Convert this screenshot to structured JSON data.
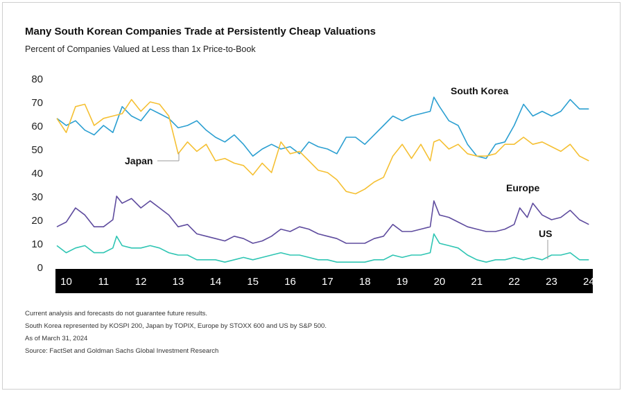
{
  "chart_data": {
    "type": "line",
    "title": "Many South Korean Companies Trade at Persistently Cheap Valuations",
    "subtitle": "Percent of Companies Valued at Less than 1x Price-to-Book",
    "xlabel": "",
    "ylabel": "",
    "ylim": [
      0,
      80
    ],
    "yticks": [
      0,
      10,
      20,
      30,
      40,
      50,
      60,
      70,
      80
    ],
    "xlim": [
      2010.0,
      2024.3
    ],
    "xtick_values": [
      2010.25,
      2011.25,
      2012.25,
      2013.25,
      2014.25,
      2015.25,
      2016.25,
      2017.25,
      2018.25,
      2019.25,
      2020.25,
      2021.25,
      2022.25,
      2023.25,
      2024.25
    ],
    "xtick_labels": [
      "10",
      "11",
      "12",
      "13",
      "14",
      "15",
      "16",
      "17",
      "18",
      "19",
      "20",
      "21",
      "22",
      "23",
      "24"
    ],
    "grid": false,
    "series": [
      {
        "name": "South Korea",
        "color": "#2b9fd1",
        "points": [
          [
            2010.0,
            63
          ],
          [
            2010.25,
            60
          ],
          [
            2010.5,
            62
          ],
          [
            2010.75,
            58
          ],
          [
            2011.0,
            56
          ],
          [
            2011.25,
            60
          ],
          [
            2011.5,
            57
          ],
          [
            2011.75,
            68
          ],
          [
            2012.0,
            64
          ],
          [
            2012.25,
            62
          ],
          [
            2012.5,
            67
          ],
          [
            2012.75,
            65
          ],
          [
            2013.0,
            63
          ],
          [
            2013.25,
            59
          ],
          [
            2013.5,
            60
          ],
          [
            2013.75,
            62
          ],
          [
            2014.0,
            58
          ],
          [
            2014.25,
            55
          ],
          [
            2014.5,
            53
          ],
          [
            2014.75,
            56
          ],
          [
            2015.0,
            52
          ],
          [
            2015.25,
            47
          ],
          [
            2015.5,
            50
          ],
          [
            2015.75,
            52
          ],
          [
            2016.0,
            50
          ],
          [
            2016.25,
            51
          ],
          [
            2016.5,
            48
          ],
          [
            2016.75,
            53
          ],
          [
            2017.0,
            51
          ],
          [
            2017.25,
            50
          ],
          [
            2017.5,
            48
          ],
          [
            2017.75,
            55
          ],
          [
            2018.0,
            55
          ],
          [
            2018.25,
            52
          ],
          [
            2018.5,
            56
          ],
          [
            2018.75,
            60
          ],
          [
            2019.0,
            64
          ],
          [
            2019.25,
            62
          ],
          [
            2019.5,
            64
          ],
          [
            2019.75,
            65
          ],
          [
            2020.0,
            66
          ],
          [
            2020.1,
            72
          ],
          [
            2020.25,
            68
          ],
          [
            2020.5,
            62
          ],
          [
            2020.75,
            60
          ],
          [
            2021.0,
            52
          ],
          [
            2021.25,
            47
          ],
          [
            2021.5,
            46
          ],
          [
            2021.75,
            52
          ],
          [
            2022.0,
            53
          ],
          [
            2022.25,
            60
          ],
          [
            2022.5,
            69
          ],
          [
            2022.75,
            64
          ],
          [
            2023.0,
            66
          ],
          [
            2023.25,
            64
          ],
          [
            2023.5,
            66
          ],
          [
            2023.75,
            71
          ],
          [
            2024.0,
            67
          ],
          [
            2024.25,
            67
          ]
        ]
      },
      {
        "name": "Japan",
        "color": "#f5c033",
        "points": [
          [
            2010.0,
            63
          ],
          [
            2010.25,
            57
          ],
          [
            2010.5,
            68
          ],
          [
            2010.75,
            69
          ],
          [
            2011.0,
            60
          ],
          [
            2011.25,
            63
          ],
          [
            2011.5,
            64
          ],
          [
            2011.75,
            65
          ],
          [
            2012.0,
            71
          ],
          [
            2012.25,
            66
          ],
          [
            2012.5,
            70
          ],
          [
            2012.75,
            69
          ],
          [
            2013.0,
            64
          ],
          [
            2013.25,
            48
          ],
          [
            2013.5,
            53
          ],
          [
            2013.75,
            49
          ],
          [
            2014.0,
            52
          ],
          [
            2014.25,
            45
          ],
          [
            2014.5,
            46
          ],
          [
            2014.75,
            44
          ],
          [
            2015.0,
            43
          ],
          [
            2015.25,
            39
          ],
          [
            2015.5,
            44
          ],
          [
            2015.75,
            40
          ],
          [
            2016.0,
            53
          ],
          [
            2016.25,
            48
          ],
          [
            2016.5,
            49
          ],
          [
            2016.75,
            45
          ],
          [
            2017.0,
            41
          ],
          [
            2017.25,
            40
          ],
          [
            2017.5,
            37
          ],
          [
            2017.75,
            32
          ],
          [
            2018.0,
            31
          ],
          [
            2018.25,
            33
          ],
          [
            2018.5,
            36
          ],
          [
            2018.75,
            38
          ],
          [
            2019.0,
            47
          ],
          [
            2019.25,
            52
          ],
          [
            2019.5,
            46
          ],
          [
            2019.75,
            52
          ],
          [
            2020.0,
            45
          ],
          [
            2020.1,
            53
          ],
          [
            2020.25,
            54
          ],
          [
            2020.5,
            50
          ],
          [
            2020.75,
            52
          ],
          [
            2021.0,
            48
          ],
          [
            2021.25,
            47
          ],
          [
            2021.5,
            47
          ],
          [
            2021.75,
            48
          ],
          [
            2022.0,
            52
          ],
          [
            2022.25,
            52
          ],
          [
            2022.5,
            55
          ],
          [
            2022.75,
            52
          ],
          [
            2023.0,
            53
          ],
          [
            2023.25,
            51
          ],
          [
            2023.5,
            49
          ],
          [
            2023.75,
            52
          ],
          [
            2024.0,
            47
          ],
          [
            2024.25,
            45
          ]
        ]
      },
      {
        "name": "Europe",
        "color": "#5e4b9e",
        "points": [
          [
            2010.0,
            17
          ],
          [
            2010.25,
            19
          ],
          [
            2010.5,
            25
          ],
          [
            2010.75,
            22
          ],
          [
            2011.0,
            17
          ],
          [
            2011.25,
            17
          ],
          [
            2011.5,
            20
          ],
          [
            2011.6,
            30
          ],
          [
            2011.75,
            27
          ],
          [
            2012.0,
            29
          ],
          [
            2012.25,
            25
          ],
          [
            2012.5,
            28
          ],
          [
            2012.75,
            25
          ],
          [
            2013.0,
            22
          ],
          [
            2013.25,
            17
          ],
          [
            2013.5,
            18
          ],
          [
            2013.75,
            14
          ],
          [
            2014.0,
            13
          ],
          [
            2014.25,
            12
          ],
          [
            2014.5,
            11
          ],
          [
            2014.75,
            13
          ],
          [
            2015.0,
            12
          ],
          [
            2015.25,
            10
          ],
          [
            2015.5,
            11
          ],
          [
            2015.75,
            13
          ],
          [
            2016.0,
            16
          ],
          [
            2016.25,
            15
          ],
          [
            2016.5,
            17
          ],
          [
            2016.75,
            16
          ],
          [
            2017.0,
            14
          ],
          [
            2017.25,
            13
          ],
          [
            2017.5,
            12
          ],
          [
            2017.75,
            10
          ],
          [
            2018.0,
            10
          ],
          [
            2018.25,
            10
          ],
          [
            2018.5,
            12
          ],
          [
            2018.75,
            13
          ],
          [
            2019.0,
            18
          ],
          [
            2019.25,
            15
          ],
          [
            2019.5,
            15
          ],
          [
            2019.75,
            16
          ],
          [
            2020.0,
            17
          ],
          [
            2020.1,
            28
          ],
          [
            2020.25,
            22
          ],
          [
            2020.5,
            21
          ],
          [
            2020.75,
            19
          ],
          [
            2021.0,
            17
          ],
          [
            2021.25,
            16
          ],
          [
            2021.5,
            15
          ],
          [
            2021.75,
            15
          ],
          [
            2022.0,
            16
          ],
          [
            2022.25,
            18
          ],
          [
            2022.4,
            25
          ],
          [
            2022.6,
            21
          ],
          [
            2022.75,
            27
          ],
          [
            2023.0,
            22
          ],
          [
            2023.25,
            20
          ],
          [
            2023.5,
            21
          ],
          [
            2023.75,
            24
          ],
          [
            2024.0,
            20
          ],
          [
            2024.25,
            18
          ]
        ]
      },
      {
        "name": "US",
        "color": "#2ec5b3",
        "points": [
          [
            2010.0,
            9
          ],
          [
            2010.25,
            6
          ],
          [
            2010.5,
            8
          ],
          [
            2010.75,
            9
          ],
          [
            2011.0,
            6
          ],
          [
            2011.25,
            6
          ],
          [
            2011.5,
            8
          ],
          [
            2011.6,
            13
          ],
          [
            2011.75,
            9
          ],
          [
            2012.0,
            8
          ],
          [
            2012.25,
            8
          ],
          [
            2012.5,
            9
          ],
          [
            2012.75,
            8
          ],
          [
            2013.0,
            6
          ],
          [
            2013.25,
            5
          ],
          [
            2013.5,
            5
          ],
          [
            2013.75,
            3
          ],
          [
            2014.0,
            3
          ],
          [
            2014.25,
            3
          ],
          [
            2014.5,
            2
          ],
          [
            2014.75,
            3
          ],
          [
            2015.0,
            4
          ],
          [
            2015.25,
            3
          ],
          [
            2015.5,
            4
          ],
          [
            2015.75,
            5
          ],
          [
            2016.0,
            6
          ],
          [
            2016.25,
            5
          ],
          [
            2016.5,
            5
          ],
          [
            2016.75,
            4
          ],
          [
            2017.0,
            3
          ],
          [
            2017.25,
            3
          ],
          [
            2017.5,
            2
          ],
          [
            2017.75,
            2
          ],
          [
            2018.0,
            2
          ],
          [
            2018.25,
            2
          ],
          [
            2018.5,
            3
          ],
          [
            2018.75,
            3
          ],
          [
            2019.0,
            5
          ],
          [
            2019.25,
            4
          ],
          [
            2019.5,
            5
          ],
          [
            2019.75,
            5
          ],
          [
            2020.0,
            6
          ],
          [
            2020.1,
            14
          ],
          [
            2020.25,
            10
          ],
          [
            2020.5,
            9
          ],
          [
            2020.75,
            8
          ],
          [
            2021.0,
            5
          ],
          [
            2021.25,
            3
          ],
          [
            2021.5,
            2
          ],
          [
            2021.75,
            3
          ],
          [
            2022.0,
            3
          ],
          [
            2022.25,
            4
          ],
          [
            2022.5,
            3
          ],
          [
            2022.75,
            4
          ],
          [
            2023.0,
            3
          ],
          [
            2023.25,
            5
          ],
          [
            2023.5,
            5
          ],
          [
            2023.75,
            6
          ],
          [
            2024.0,
            3
          ],
          [
            2024.25,
            3
          ]
        ]
      }
    ],
    "annotations": [
      {
        "text": "South Korea",
        "series": "South Korea"
      },
      {
        "text": "Japan",
        "series": "Japan"
      },
      {
        "text": "Europe",
        "series": "Europe"
      },
      {
        "text": "US",
        "series": "US"
      }
    ],
    "notes": [
      "Current analysis and forecasts do not guarantee future results.",
      "South Korea represented by KOSPI 200, Japan by TOPIX, Europe by STOXX 600 and US by S&P 500.",
      "As of March 31, 2024",
      "Source: FactSet and Goldman Sachs Global Investment Research"
    ]
  }
}
